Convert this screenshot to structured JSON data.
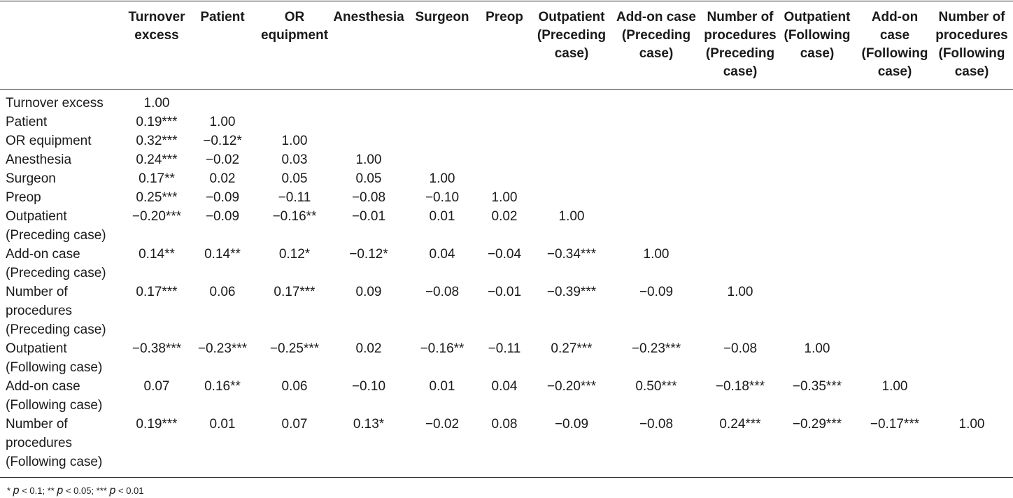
{
  "columns": [
    {
      "lines": [
        "Turnover",
        "excess"
      ]
    },
    {
      "lines": [
        "Patient"
      ]
    },
    {
      "lines": [
        "OR",
        "equipment"
      ]
    },
    {
      "lines": [
        "Anesthesia"
      ]
    },
    {
      "lines": [
        "Surgeon"
      ]
    },
    {
      "lines": [
        "Preop"
      ]
    },
    {
      "lines": [
        "Outpatient",
        "(Preceding",
        "case)"
      ]
    },
    {
      "lines": [
        "Add-on case",
        "(Preceding",
        "case)"
      ]
    },
    {
      "lines": [
        "Number of",
        "procedures",
        "(Preceding",
        "case)"
      ]
    },
    {
      "lines": [
        "Outpatient",
        "(Following",
        "case)"
      ]
    },
    {
      "lines": [
        "Add-on",
        "case",
        "(Following",
        "case)"
      ]
    },
    {
      "lines": [
        "Number of",
        "procedures",
        "(Following",
        "case)"
      ]
    }
  ],
  "rows": [
    {
      "label": [
        "Turnover excess"
      ],
      "values": [
        "1.00"
      ]
    },
    {
      "label": [
        "Patient"
      ],
      "values": [
        "0.19***",
        "1.00"
      ]
    },
    {
      "label": [
        "OR equipment"
      ],
      "values": [
        "0.32***",
        "−0.12*",
        "1.00"
      ]
    },
    {
      "label": [
        "Anesthesia"
      ],
      "values": [
        "0.24***",
        "−0.02",
        "0.03",
        "1.00"
      ]
    },
    {
      "label": [
        "Surgeon"
      ],
      "values": [
        "0.17**",
        "0.02",
        "0.05",
        "0.05",
        "1.00"
      ]
    },
    {
      "label": [
        "Preop"
      ],
      "values": [
        "0.25***",
        "−0.09",
        "−0.11",
        "−0.08",
        "−0.10",
        "1.00"
      ]
    },
    {
      "label": [
        "Outpatient",
        "(Preceding case)"
      ],
      "values": [
        "−0.20***",
        "−0.09",
        "−0.16**",
        "−0.01",
        "0.01",
        "0.02",
        "1.00"
      ]
    },
    {
      "label": [
        "Add-on case",
        "(Preceding case)"
      ],
      "values": [
        "0.14**",
        "0.14**",
        "0.12*",
        "−0.12*",
        "0.04",
        "−0.04",
        "−0.34***",
        "1.00"
      ]
    },
    {
      "label": [
        "Number of",
        "procedures",
        "(Preceding case)"
      ],
      "values": [
        "0.17***",
        "0.06",
        "0.17***",
        "0.09",
        "−0.08",
        "−0.01",
        "−0.39***",
        "−0.09",
        "1.00"
      ]
    },
    {
      "label": [
        "Outpatient",
        "(Following case)"
      ],
      "values": [
        "−0.38***",
        "−0.23***",
        "−0.25***",
        "0.02",
        "−0.16**",
        "−0.11",
        "0.27***",
        "−0.23***",
        "−0.08",
        "1.00"
      ]
    },
    {
      "label": [
        "Add-on case",
        "(Following case)"
      ],
      "values": [
        "0.07",
        "0.16**",
        "0.06",
        "−0.10",
        "0.01",
        "0.04",
        "−0.20***",
        "0.50***",
        "−0.18***",
        "−0.35***",
        "1.00"
      ]
    },
    {
      "label": [
        "Number of",
        "procedures",
        "(Following case)"
      ],
      "values": [
        "0.19***",
        "0.01",
        "0.07",
        "0.13*",
        "−0.02",
        "0.08",
        "−0.09",
        "−0.08",
        "0.24***",
        "−0.29***",
        "−0.17***",
        "1.00"
      ]
    }
  ],
  "footnote": {
    "parts": [
      {
        "text": "* ",
        "italic": false
      },
      {
        "text": "p",
        "italic": true
      },
      {
        "text": " < 0.1; ** ",
        "italic": false
      },
      {
        "text": "p",
        "italic": true
      },
      {
        "text": " < 0.05; *** ",
        "italic": false
      },
      {
        "text": "p",
        "italic": true
      },
      {
        "text": " < 0.01",
        "italic": false
      }
    ]
  }
}
